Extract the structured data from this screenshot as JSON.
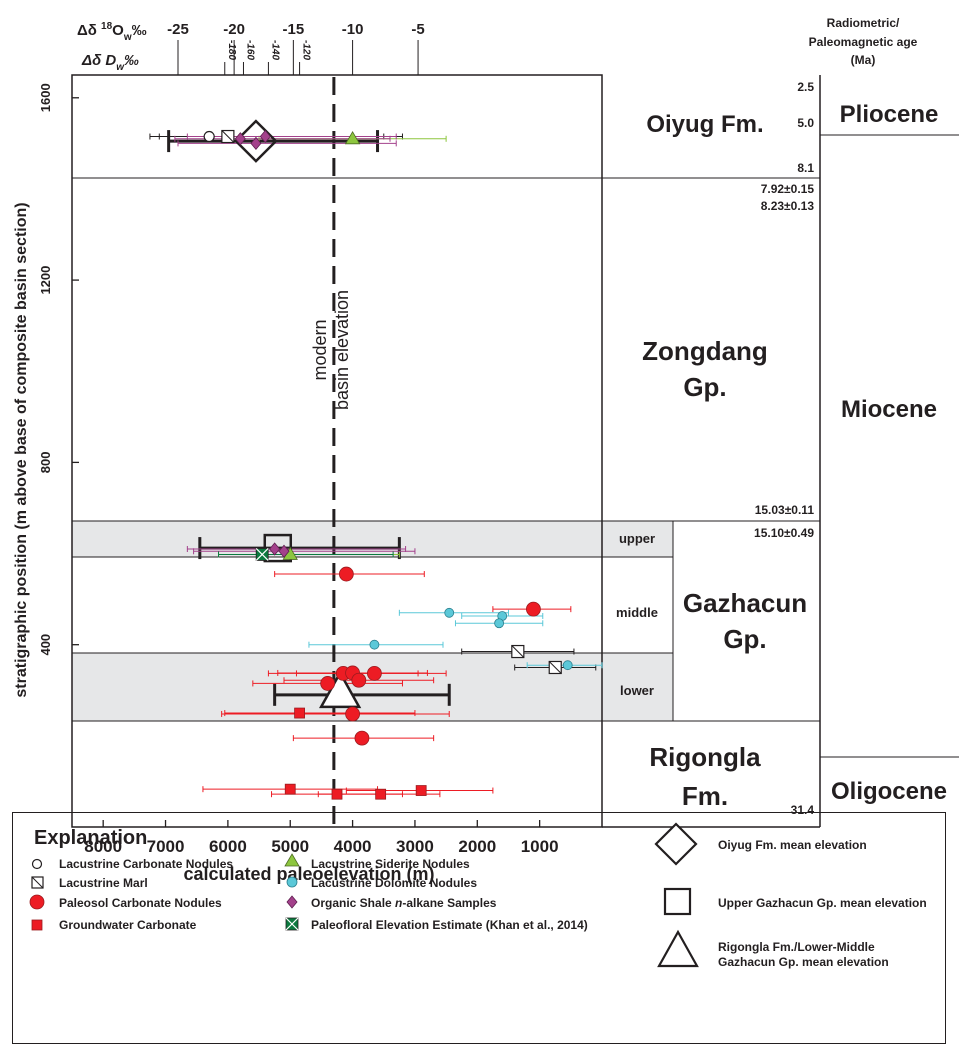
{
  "chart_data": {
    "type": "scatter",
    "xlabel": "calculated paleoelevation (m)",
    "ylabel": "stratigraphic position (m above base of composite basin section)",
    "xlim": [
      8500,
      0
    ],
    "ylim": [
      0,
      1650
    ],
    "x_ticks": [
      "8000",
      "7000",
      "6000",
      "5000",
      "4000",
      "3000",
      "2000",
      "1000"
    ],
    "x_tick_values": [
      8000,
      7000,
      6000,
      5000,
      4000,
      3000,
      2000,
      1000
    ],
    "y_ticks": [
      "400",
      "800",
      "1200",
      "1600"
    ],
    "y_tick_values": [
      400,
      800,
      1200,
      1600
    ],
    "top_axis_d18O": {
      "label_prefix": "Δδ ",
      "label_sup": "18",
      "label_mid": "O",
      "label_sub": "w",
      "label_suffix": "‰",
      "ticks": [
        {
          "label": "-25",
          "x": 6800
        },
        {
          "label": "-20",
          "x": 5900
        },
        {
          "label": "-15",
          "x": 4950
        },
        {
          "label": "-10",
          "x": 4000
        },
        {
          "label": "-5",
          "x": 2950
        }
      ]
    },
    "top_axis_dD": {
      "label_prefix": "Δδ D",
      "label_sub": "w",
      "label_suffix": "‰",
      "ticks": [
        {
          "label": "-180",
          "x": 6050
        },
        {
          "label": "-160",
          "x": 5750
        },
        {
          "label": "-140",
          "x": 5350
        },
        {
          "label": "-120",
          "x": 4850
        }
      ]
    },
    "reference_line": {
      "x": 4300,
      "label_line1": "modern",
      "label_line2": "basin elevation"
    },
    "shaded_bands": [
      [
        562,
        640
      ],
      [
        225,
        370
      ]
    ],
    "formation_boundaries": [
      0,
      225,
      640,
      1405,
      1650
    ],
    "series": [
      {
        "name": "Lacustrine Carbonate Nodules",
        "marker": "circle-open",
        "color": "#ffffff",
        "points": [
          {
            "x": 6300,
            "y": 1515,
            "xerr": [
              7250,
              3200
            ]
          }
        ]
      },
      {
        "name": "Lacustrine Marl",
        "marker": "square-slash",
        "color": "#ffffff",
        "points": [
          {
            "x": 6000,
            "y": 1515,
            "xerr": [
              7100,
              3500
            ]
          },
          {
            "x": 1350,
            "y": 385,
            "xerr": [
              2250,
              450
            ]
          },
          {
            "x": 750,
            "y": 350,
            "xerr": [
              1400,
              100
            ]
          }
        ]
      },
      {
        "name": "Paleosol Carbonate Nodules",
        "marker": "circle",
        "color": "#ed1c24",
        "points": [
          {
            "x": 4100,
            "y": 555,
            "xerr": [
              5250,
              2850
            ]
          },
          {
            "x": 1100,
            "y": 478,
            "xerr": [
              1750,
              500
            ]
          },
          {
            "x": 4150,
            "y": 337,
            "xerr": [
              5350,
              2950
            ]
          },
          {
            "x": 4000,
            "y": 338,
            "xerr": [
              5200,
              2800
            ]
          },
          {
            "x": 3650,
            "y": 337,
            "xerr": [
              4900,
              2500
            ]
          },
          {
            "x": 4400,
            "y": 315,
            "xerr": [
              5600,
              3200
            ]
          },
          {
            "x": 3900,
            "y": 322,
            "xerr": [
              5100,
              2700
            ]
          },
          {
            "x": 4000,
            "y": 248,
            "xerr": [
              6100,
              2450
            ]
          },
          {
            "x": 3850,
            "y": 195,
            "xerr": [
              4950,
              2700
            ]
          }
        ]
      },
      {
        "name": "Groundwater Carbonate",
        "marker": "square",
        "color": "#ed1c24",
        "points": [
          {
            "x": 4850,
            "y": 250,
            "xerr": [
              6050,
              3000
            ]
          },
          {
            "x": 5000,
            "y": 83,
            "xerr": [
              6400,
              3600
            ]
          },
          {
            "x": 4250,
            "y": 72,
            "xerr": [
              5300,
              3200
            ]
          },
          {
            "x": 3550,
            "y": 72,
            "xerr": [
              4550,
              2600
            ]
          },
          {
            "x": 2900,
            "y": 80,
            "xerr": [
              4100,
              1750
            ]
          }
        ]
      },
      {
        "name": "Lacustrine Siderite Nodules",
        "marker": "triangle",
        "color": "#8dc63f",
        "points": [
          {
            "x": 4000,
            "y": 1510,
            "xerr": [
              5500,
              2500
            ]
          },
          {
            "x": 5000,
            "y": 598,
            "xerr": [
              6150,
              3250
            ]
          }
        ]
      },
      {
        "name": "Lacustrine Dolomite Nodules",
        "marker": "circle",
        "color": "#5bc8d8",
        "points": [
          {
            "x": 2450,
            "y": 470,
            "xerr": [
              3250,
              1500
            ]
          },
          {
            "x": 1600,
            "y": 463,
            "xerr": [
              2250,
              950
            ]
          },
          {
            "x": 1650,
            "y": 447,
            "xerr": [
              2350,
              950
            ]
          },
          {
            "x": 3650,
            "y": 400,
            "xerr": [
              4700,
              2550
            ]
          },
          {
            "x": 550,
            "y": 355,
            "xerr": [
              1200,
              0
            ]
          }
        ]
      },
      {
        "name": "Organic Shale n-alkane Samples",
        "marker": "diamond",
        "color": "#a3418b",
        "points": [
          {
            "x": 5800,
            "y": 1510,
            "xerr": [
              6850,
              3400
            ]
          },
          {
            "x": 5550,
            "y": 1500,
            "xerr": [
              6800,
              3300
            ]
          },
          {
            "x": 5400,
            "y": 1515,
            "xerr": [
              6650,
              3300
            ]
          },
          {
            "x": 5250,
            "y": 610,
            "xerr": [
              6650,
              3150
            ]
          },
          {
            "x": 5100,
            "y": 605,
            "xerr": [
              6550,
              3000
            ]
          }
        ]
      },
      {
        "name": "Paleofloral Elevation Estimate (Khan et al., 2014)",
        "marker": "square-x",
        "color": "#0b7a3e",
        "points": [
          {
            "x": 5450,
            "y": 598,
            "xerr": [
              6150,
              3350
            ]
          }
        ]
      }
    ],
    "mean_markers": [
      {
        "name": "Oiyug Fm. mean elevation",
        "marker": "diamond-open",
        "x": 5550,
        "y": 1505,
        "xerr": [
          6950,
          3600
        ]
      },
      {
        "name": "Upper Gazhacun Gp. mean elevation",
        "marker": "square-open",
        "x": 5200,
        "y": 612,
        "xerr": [
          6450,
          3250
        ]
      },
      {
        "name": "Rigongla Fm./Lower-Middle Gazhacun Gp. mean elevation",
        "marker": "triangle-open",
        "x": 4200,
        "y": 290,
        "xerr": [
          5250,
          2450
        ]
      }
    ]
  },
  "age_header": {
    "line1": "Radiometric/",
    "line2": "Paleomagnetic age",
    "line3": "(Ma)"
  },
  "formations": [
    {
      "name": "Oiyug Fm.",
      "line2": ""
    },
    {
      "name": "Zongdang",
      "line2": "Gp."
    },
    {
      "name": "Gazhacun",
      "line2": "Gp."
    },
    {
      "name": "Rigongla",
      "line2": "Fm."
    }
  ],
  "subunits": [
    "upper",
    "middle",
    "lower"
  ],
  "ages": [
    "2.5",
    "5.0",
    "8.1",
    "7.92±0.15",
    "8.23±0.13",
    "15.03±0.11",
    "15.10±0.49",
    "31.4"
  ],
  "epochs": [
    "Pliocene",
    "Miocene",
    "Oligocene"
  ],
  "legend": {
    "title": "Explanation",
    "col1": [
      "Lacustrine Carbonate Nodules",
      "Lacustrine Marl",
      "Paleosol Carbonate Nodules",
      "Groundwater Carbonate"
    ],
    "col2_pre": [
      "Lacustrine Siderite Nodules",
      "Lacustrine Dolomite Nodules"
    ],
    "alkane_pre": "Organic Shale ",
    "alkane_italic": "n",
    "alkane_post": "-alkane Samples",
    "paleofloral": "Paleofloral Elevation Estimate (Khan et al., 2014)",
    "means": [
      "Oiyug Fm. mean elevation",
      "Upper Gazhacun Gp. mean elevation"
    ],
    "mean3_line1": "Rigongla Fm./Lower-Middle",
    "mean3_line2": "Gazhacun Gp. mean elevation"
  }
}
